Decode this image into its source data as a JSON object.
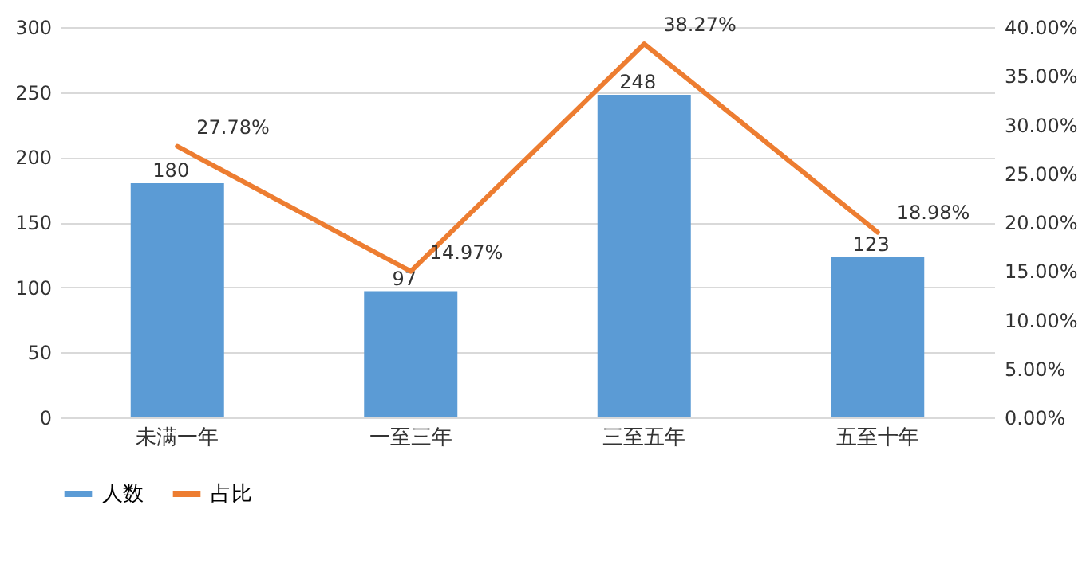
{
  "chart_data": {
    "type": "bar",
    "categories": [
      "未满一年",
      "一至三年",
      "三至五年",
      "五至十年"
    ],
    "series": [
      {
        "name": "人数",
        "type": "bar",
        "color": "#5b9bd5",
        "values": [
          180,
          97,
          248,
          123
        ],
        "value_labels": [
          "180",
          "97",
          "248",
          "123"
        ]
      },
      {
        "name": "占比",
        "type": "line",
        "axis": "y2",
        "color": "#ed7d31",
        "values": [
          27.78,
          14.97,
          38.27,
          18.98
        ],
        "value_labels": [
          "27.78%",
          "14.97%",
          "38.27%",
          "18.98%"
        ]
      }
    ],
    "ylim": [
      0,
      300
    ],
    "yticks": [
      0,
      50,
      100,
      150,
      200,
      250,
      300
    ],
    "y2lim": [
      0,
      40
    ],
    "y2ticks": [
      {
        "value": 0,
        "label": "0.00%"
      },
      {
        "value": 5,
        "label": "5.00%"
      },
      {
        "value": 10,
        "label": "10.00%"
      },
      {
        "value": 15,
        "label": "15.00%"
      },
      {
        "value": 20,
        "label": "20.00%"
      },
      {
        "value": 25,
        "label": "25.00%"
      },
      {
        "value": 30,
        "label": "30.00%"
      },
      {
        "value": 35,
        "label": "35.00%"
      },
      {
        "value": 40,
        "label": "40.00%"
      }
    ],
    "grid": "y",
    "legend": "bottom",
    "line_style": "solid",
    "marker": "none"
  }
}
